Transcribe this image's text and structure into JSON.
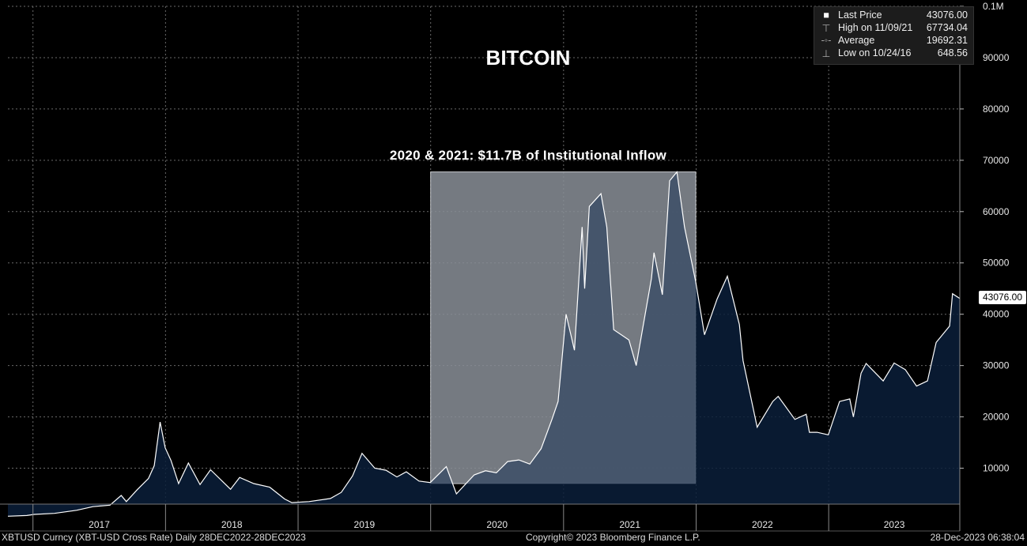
{
  "chart_data": {
    "type": "area",
    "title": "BITCOIN",
    "annotation": "2020 & 2021: $11.7B of Institutional Inflow",
    "highlight_range": [
      "2020-01-01",
      "2021-12-31"
    ],
    "highlight_ylim": [
      7000,
      67734.04
    ],
    "x_tick_labels": [
      "2017",
      "2018",
      "2019",
      "2020",
      "2021",
      "2022",
      "2023"
    ],
    "y_tick_labels": [
      "0.1M",
      "90000",
      "80000",
      "70000",
      "60000",
      "50000",
      "40000",
      "30000",
      "20000",
      "10000"
    ],
    "ylim": [
      3000,
      100000
    ],
    "xlim": [
      "2016-10-24",
      "2023-12-28"
    ],
    "grid": true,
    "legend_position": "top-right",
    "series": [
      {
        "x": [
          "2016-10-24",
          "2016-12-15",
          "2017-01-05",
          "2017-03-01",
          "2017-05-01",
          "2017-06-15",
          "2017-08-01",
          "2017-09-01",
          "2017-09-15",
          "2017-10-15",
          "2017-11-15",
          "2017-12-01",
          "2017-12-17",
          "2017-12-31",
          "2018-01-16",
          "2018-02-06",
          "2018-03-05",
          "2018-04-06",
          "2018-05-05",
          "2018-06-29",
          "2018-07-24",
          "2018-09-01",
          "2018-10-15",
          "2018-11-25",
          "2018-12-15",
          "2019-01-31",
          "2019-03-31",
          "2019-04-30",
          "2019-05-31",
          "2019-06-26",
          "2019-07-31",
          "2019-08-31",
          "2019-09-30",
          "2019-10-26",
          "2019-11-30",
          "2019-12-31",
          "2020-02-13",
          "2020-03-12",
          "2020-04-30",
          "2020-05-31",
          "2020-06-30",
          "2020-07-31",
          "2020-08-31",
          "2020-09-30",
          "2020-10-31",
          "2020-11-30",
          "2020-12-17",
          "2021-01-08",
          "2021-01-31",
          "2021-02-21",
          "2021-02-28",
          "2021-03-13",
          "2021-04-14",
          "2021-04-30",
          "2021-05-19",
          "2021-06-30",
          "2021-07-20",
          "2021-08-31",
          "2021-09-07",
          "2021-09-30",
          "2021-10-20",
          "2021-11-09",
          "2021-11-30",
          "2021-12-31",
          "2022-01-24",
          "2022-02-28",
          "2022-03-28",
          "2022-04-30",
          "2022-05-10",
          "2022-06-18",
          "2022-07-31",
          "2022-08-15",
          "2022-09-30",
          "2022-10-31",
          "2022-11-09",
          "2022-11-30",
          "2022-12-31",
          "2023-01-31",
          "2023-02-28",
          "2023-03-10",
          "2023-03-31",
          "2023-04-14",
          "2023-05-31",
          "2023-06-30",
          "2023-07-31",
          "2023-08-31",
          "2023-09-30",
          "2023-10-24",
          "2023-11-30",
          "2023-12-08",
          "2023-12-28"
        ],
        "values": [
          648.56,
          780,
          1000,
          1200,
          1800,
          2500,
          2800,
          4700,
          3500,
          5800,
          8000,
          10500,
          19000,
          14000,
          11500,
          7000,
          11000,
          6800,
          9700,
          5900,
          8200,
          7000,
          6300,
          4000,
          3300,
          3500,
          4100,
          5300,
          8500,
          12900,
          10000,
          9600,
          8300,
          9300,
          7500,
          7200,
          10300,
          5000,
          8700,
          9500,
          9100,
          11300,
          11600,
          10800,
          13800,
          19500,
          23000,
          40000,
          33000,
          57000,
          45000,
          61000,
          63500,
          57000,
          37000,
          35000,
          30000,
          47000,
          52000,
          43800,
          66000,
          67734.04,
          57000,
          46300,
          36000,
          43000,
          47400,
          38000,
          31000,
          18000,
          23000,
          24000,
          19500,
          20500,
          17000,
          17000,
          16500,
          23000,
          23500,
          20000,
          28500,
          30400,
          27000,
          30500,
          29200,
          26000,
          27000,
          34500,
          37700,
          44000,
          43076
        ]
      }
    ]
  },
  "legend": {
    "last_price_label": "Last Price",
    "last_price_value": "43076.00",
    "high_label": "High on 11/09/21",
    "high_value": "67734.04",
    "average_label": "Average",
    "average_value": "19692.31",
    "low_label": "Low on 10/24/16",
    "low_value": "648.56"
  },
  "last_price_tag": "43076.00",
  "footer": {
    "left": "XBTUSD Curncy (XBT-USD Cross Rate)  Daily 28DEC2022-28DEC2023",
    "center": "Copyright© 2023 Bloomberg Finance L.P.",
    "right": "28-Dec-2023 06:38:04"
  },
  "colors": {
    "background": "#000000",
    "area_fill": "#0b1f3a",
    "line": "#ffffff",
    "highlight": "#7a7a7a",
    "grid": "#6a6a6a"
  }
}
